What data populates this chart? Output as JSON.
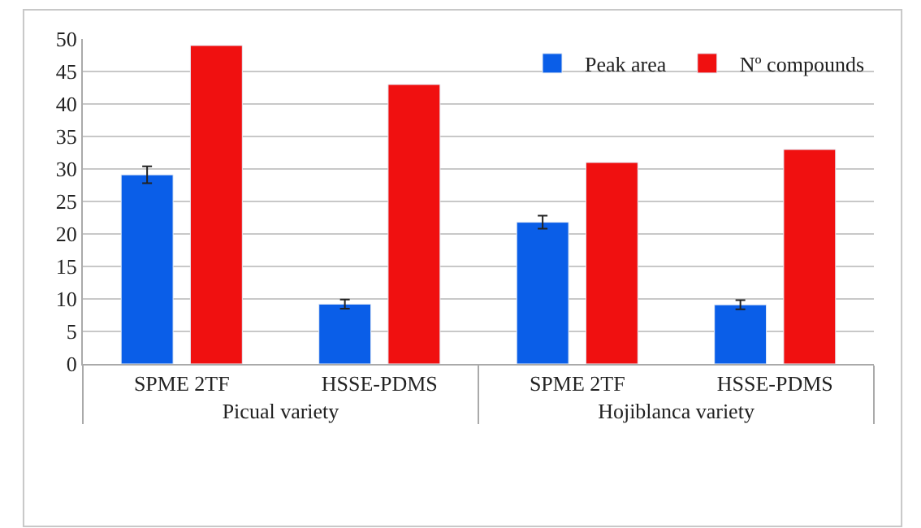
{
  "chart_data": {
    "type": "bar",
    "categories": [
      "SPME 2TF",
      "HSSE-PDMS",
      "SPME 2TF",
      "HSSE-PDMS"
    ],
    "annotations": [
      "Picual variety",
      "Hojiblanca variety"
    ],
    "series": [
      {
        "name": "Peak area",
        "color": "#0a5ee8",
        "values": [
          29.1,
          9.2,
          21.8,
          9.1
        ],
        "errors": [
          1.3,
          0.7,
          1.0,
          0.7
        ]
      },
      {
        "name": "Nº compounds",
        "color": "#f01010",
        "values": [
          49,
          43,
          31,
          33
        ]
      }
    ],
    "ylim": [
      0,
      50
    ],
    "yticks": [
      0,
      5,
      10,
      15,
      20,
      25,
      30,
      35,
      40,
      45,
      50
    ],
    "grid": "y",
    "legend": "top right"
  }
}
